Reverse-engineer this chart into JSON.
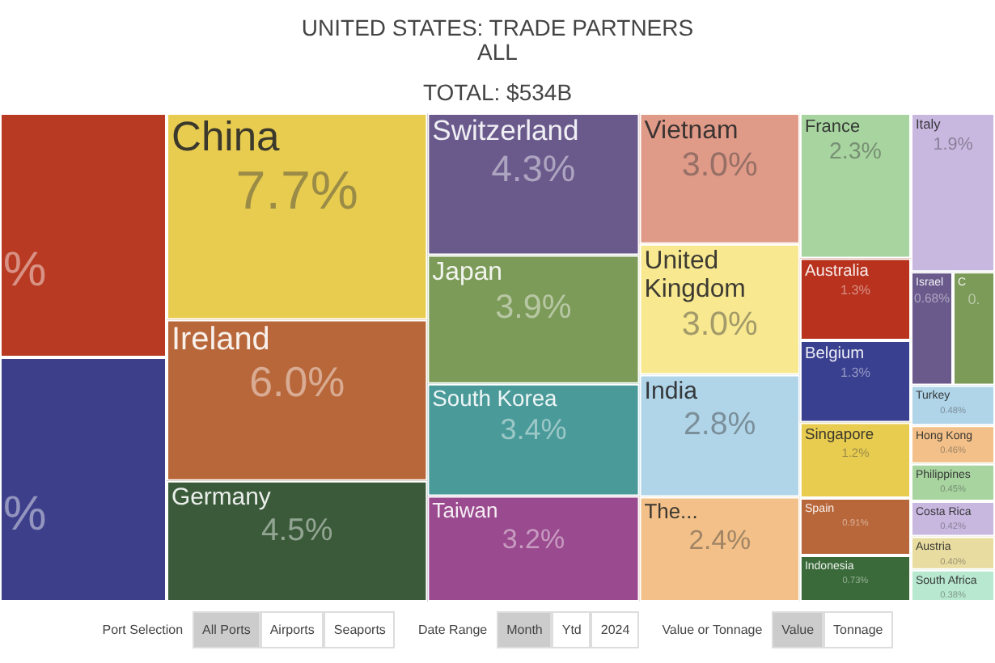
{
  "chart_data": {
    "type": "other",
    "title": "UNITED STATES: TRADE PARTNERS",
    "subtitle": "ALL",
    "annotations": [
      "TOTAL: $534B",
      "Port Selection",
      "All Ports",
      "Airports",
      "Seaports",
      "Date Range",
      "Month",
      "Ytd",
      "2024",
      "Value or Tonnage",
      "Value",
      "Tonnage"
    ],
    "categories": [
      null,
      null,
      "China",
      "Ireland",
      "Germany",
      "Switzerland",
      "Japan",
      "South Korea",
      "Taiwan",
      "Vietnam",
      "United Kingdom",
      "India",
      "The...",
      "France",
      "Australia",
      "Belgium",
      "Singapore",
      "Spain",
      "Indonesia",
      "Italy",
      "Israel",
      "C",
      "Turkey",
      "Hong Kong",
      "Philippines",
      "Costa Rica",
      "Austria",
      "South Africa"
    ],
    "values": [
      null,
      null,
      7.7,
      6.0,
      4.5,
      4.3,
      3.9,
      3.4,
      3.2,
      3.0,
      3.0,
      2.8,
      2.4,
      2.3,
      1.3,
      1.3,
      1.2,
      0.91,
      0.73,
      1.9,
      0.68,
      null,
      0.48,
      0.46,
      0.45,
      0.42,
      0.4,
      0.38
    ],
    "value_labels": [
      "%",
      "%",
      "7.7%",
      "6.0%",
      "4.5%",
      "4.3%",
      "3.9%",
      "3.4%",
      "3.2%",
      "3.0%",
      "3.0%",
      "2.8%",
      "2.4%",
      "2.3%",
      "1.3%",
      "1.3%",
      "1.2%",
      "0.91%",
      "0.73%",
      "1.9%",
      "0.68%",
      "0.",
      "0.48%",
      "0.46%",
      "0.45%",
      "0.42%",
      "0.40%",
      "0.38%"
    ],
    "colors": [
      "#b83a22",
      "#3d3f8a",
      "#e8cc50",
      "#b8673a",
      "#3a5a3a",
      "#6a5a8c",
      "#7c9a58",
      "#4a9a9a",
      "#9a4a8e",
      "#e09a88",
      "#f8e890",
      "#b0d4e8",
      "#f2c088",
      "#a8d4a0",
      "#b8321e",
      "#3a4090",
      "#e8cc50",
      "#b8673a",
      "#3a6a3a",
      "#c8b8e0",
      "#6a5a8c",
      "#7c9a58",
      "#b0d4e8",
      "#f2c088",
      "#a8d4a0",
      "#c8b8e0",
      "#e8dca0",
      "#b8e8d0"
    ]
  }
}
